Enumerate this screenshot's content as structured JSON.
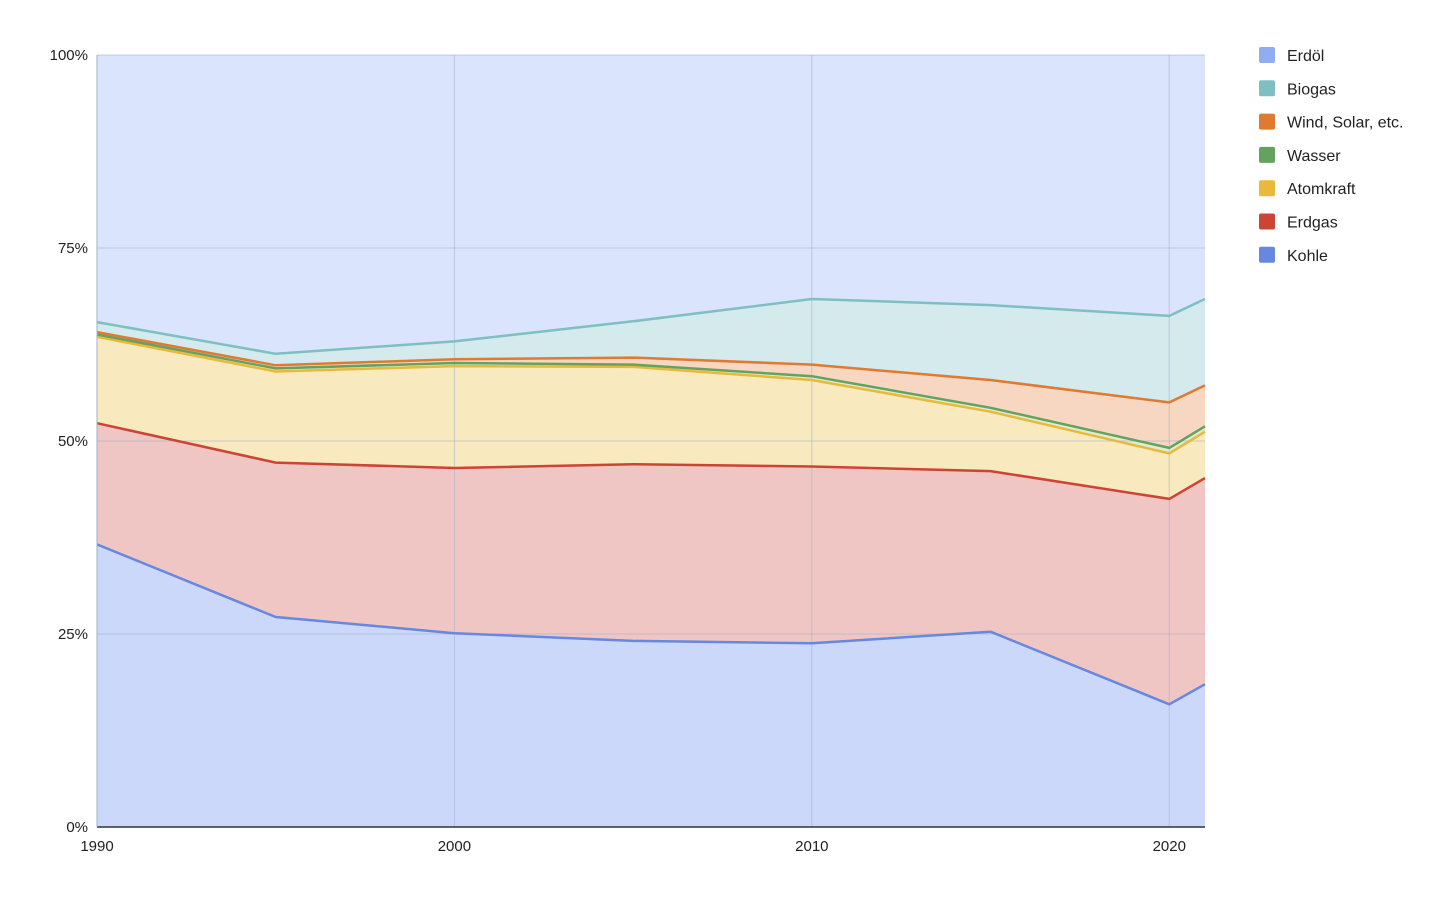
{
  "chart_data": {
    "type": "area",
    "stacked": true,
    "normalized": true,
    "title": "",
    "xlabel": "",
    "ylabel": "",
    "x": [
      1990,
      1995,
      2000,
      2005,
      2010,
      2015,
      2020,
      2021
    ],
    "xlim": [
      1990,
      2021
    ],
    "x_ticks": [
      {
        "value": 1990,
        "label": "1990"
      },
      {
        "value": 2000,
        "label": "2000"
      },
      {
        "value": 2010,
        "label": "2010"
      },
      {
        "value": 2020,
        "label": "2020"
      }
    ],
    "ylim": [
      0,
      100
    ],
    "y_ticks": [
      {
        "value": 0,
        "label": "0%"
      },
      {
        "value": 25,
        "label": "25%"
      },
      {
        "value": 50,
        "label": "50%"
      },
      {
        "value": 75,
        "label": "75%"
      },
      {
        "value": 100,
        "label": "100%"
      }
    ],
    "grid": true,
    "legend_position": "right",
    "series": [
      {
        "name": "Kohle",
        "color": "#6688e0",
        "fill": "#cbd8fa",
        "values": [
          36.6,
          27.2,
          25.1,
          24.1,
          23.8,
          25.3,
          15.9,
          18.5
        ]
      },
      {
        "name": "Erdgas",
        "color": "#cc4433",
        "fill": "#f0c6c4",
        "values": [
          15.7,
          20.0,
          21.4,
          22.9,
          22.9,
          20.8,
          26.6,
          26.7
        ]
      },
      {
        "name": "Atomkraft",
        "color": "#e8b93a",
        "fill": "#f9e9be",
        "values": [
          11.2,
          11.8,
          13.2,
          12.6,
          11.2,
          7.7,
          5.9,
          6.0
        ]
      },
      {
        "name": "Wasser",
        "color": "#63a35c",
        "fill": "#e0ecd0",
        "values": [
          0.3,
          0.4,
          0.4,
          0.3,
          0.5,
          0.5,
          0.7,
          0.7
        ]
      },
      {
        "name": "Wind, Solar, etc.",
        "color": "#e07a30",
        "fill": "#f7d6c2",
        "values": [
          0.3,
          0.4,
          0.5,
          0.9,
          1.5,
          3.6,
          5.9,
          5.3
        ]
      },
      {
        "name": "Biogas",
        "color": "#7ebfc1",
        "fill": "#d4eaed",
        "values": [
          1.3,
          1.5,
          2.3,
          4.7,
          8.5,
          9.7,
          11.2,
          11.2
        ]
      },
      {
        "name": "Erdöl",
        "color": "#8fadf0",
        "fill": "#dae4fc",
        "values": [
          34.6,
          38.7,
          37.1,
          34.5,
          31.6,
          32.4,
          33.8,
          31.6
        ]
      }
    ],
    "legend_order": [
      "Erdöl",
      "Biogas",
      "Wind, Solar, etc.",
      "Wasser",
      "Atomkraft",
      "Erdgas",
      "Kohle"
    ]
  }
}
